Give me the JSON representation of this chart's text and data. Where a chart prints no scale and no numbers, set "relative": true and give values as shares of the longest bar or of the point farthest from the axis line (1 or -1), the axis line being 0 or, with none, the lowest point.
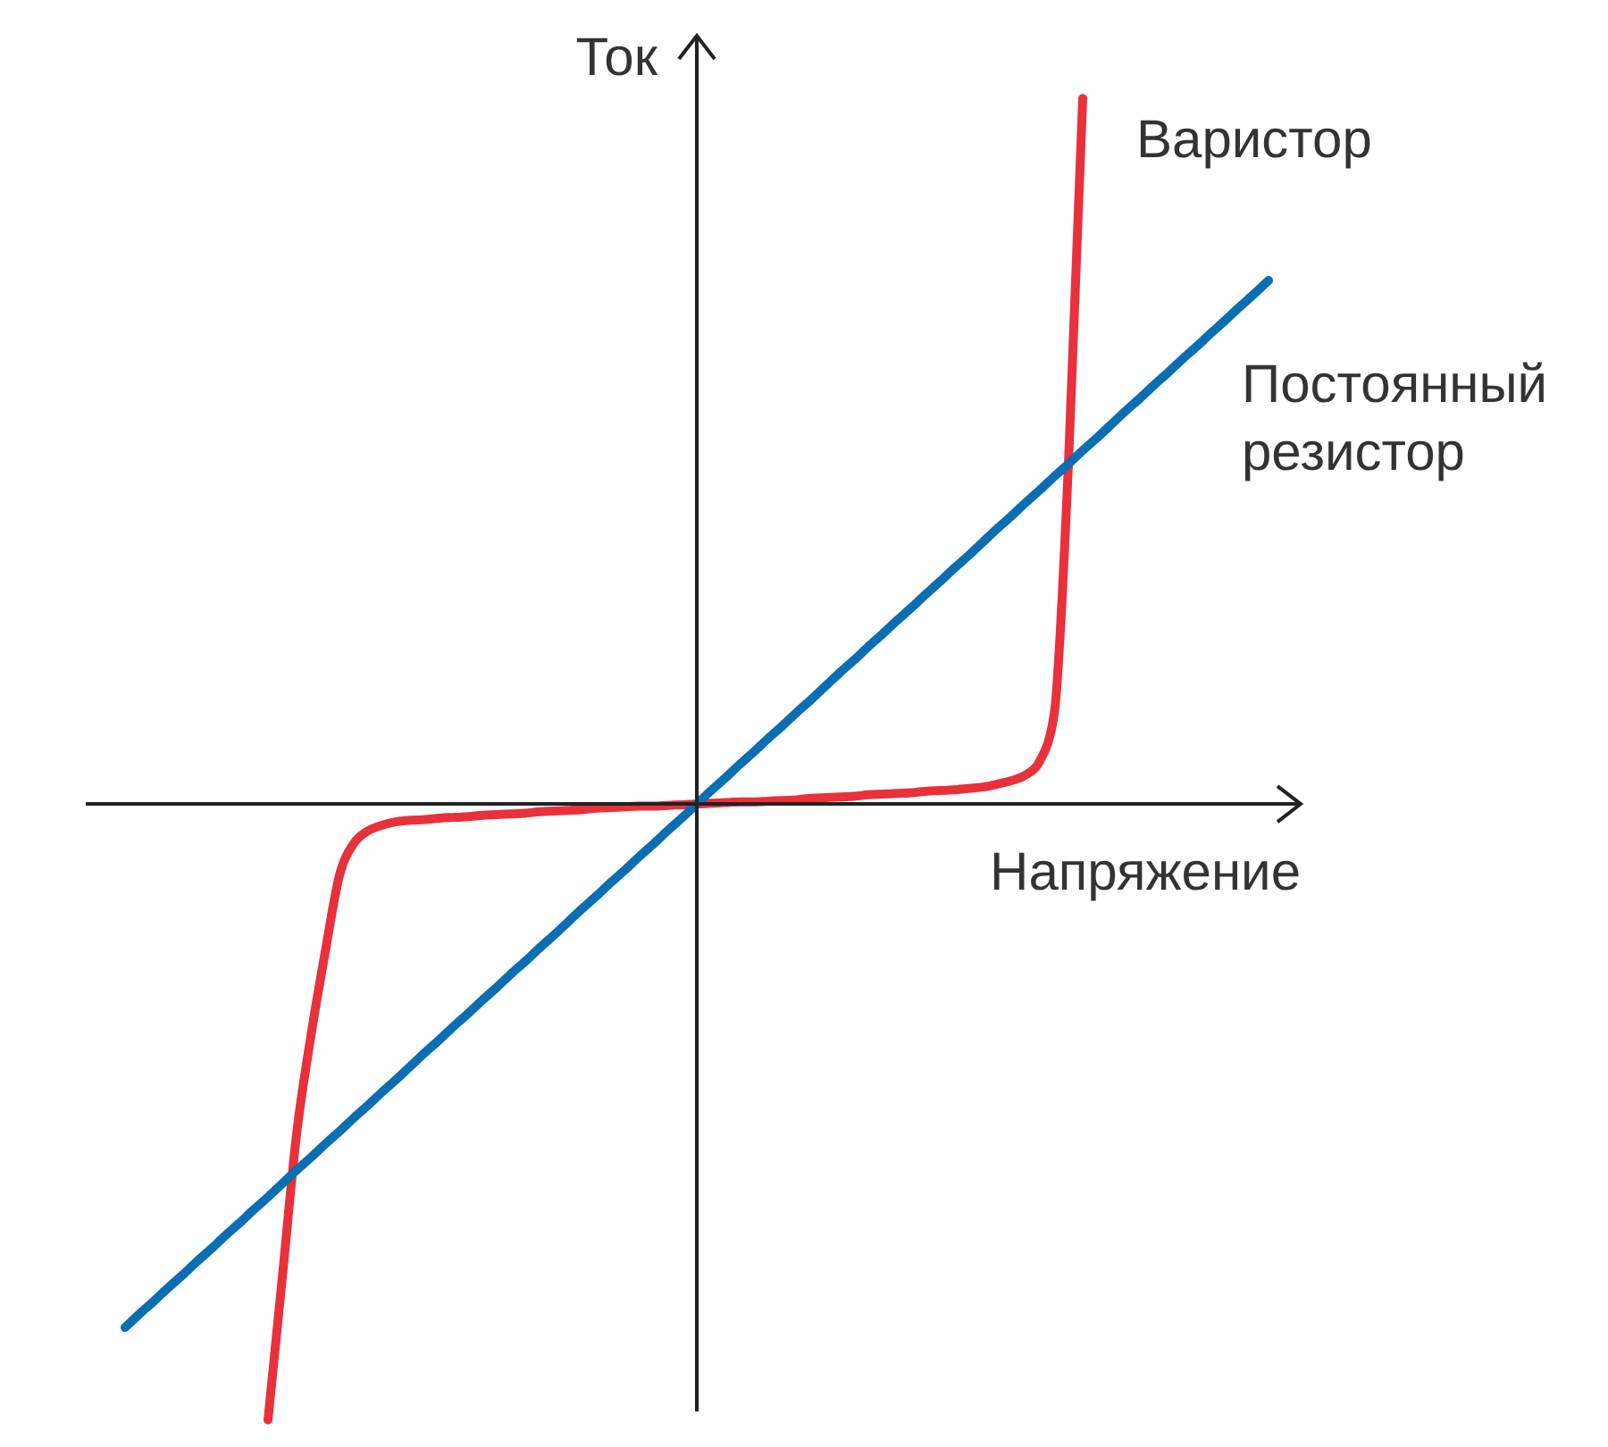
{
  "chart_data": {
    "type": "line",
    "relative": true,
    "xlabel": "Напряжение",
    "ylabel": "Ток",
    "legend": false,
    "grid": false,
    "marker": "none",
    "line_style": "solid",
    "categories": [
      null,
      null,
      null,
      null,
      null,
      null,
      null,
      null,
      null,
      null,
      null,
      null,
      null,
      null,
      null,
      null,
      null,
      null,
      null,
      null,
      null,
      null,
      null,
      null,
      null,
      null,
      null,
      null,
      null,
      null,
      null,
      null,
      null,
      null,
      null,
      null,
      null,
      null,
      null,
      null,
      null,
      null,
      null,
      null,
      null,
      null,
      null,
      null,
      null,
      null,
      null,
      null,
      null,
      null,
      null,
      null,
      null,
      null,
      null,
      null,
      null,
      null,
      null,
      null,
      null,
      null,
      null,
      null,
      null,
      null,
      null,
      null,
      null,
      null,
      null,
      null,
      null,
      null,
      null,
      null,
      null
    ],
    "series": [
      {
        "name": "Варистор",
        "color": "#e8313a",
        "values": [
          null,
          null,
          null,
          null,
          null,
          null,
          null,
          null,
          null,
          null,
          -0.873,
          -0.671,
          -0.468,
          -0.329,
          -0.21,
          -0.101,
          -0.056,
          -0.038,
          -0.03,
          -0.025,
          -0.023,
          -0.022,
          -0.02,
          -0.019,
          -0.018,
          -0.016,
          -0.015,
          -0.014,
          -0.013,
          -0.011,
          -0.01,
          -0.009,
          -0.008,
          -0.006,
          -0.005,
          -0.004,
          -0.003,
          -0.003,
          -0.002,
          -0.001,
          0,
          0.001,
          0.002,
          0.003,
          0.003,
          0.004,
          0.005,
          0.006,
          0.008,
          0.009,
          0.01,
          0.011,
          0.013,
          0.014,
          0.015,
          0.016,
          0.018,
          0.019,
          0.02,
          0.022,
          0.024,
          0.028,
          0.033,
          0.041,
          0.061,
          0.127,
          0.481,
          1,
          null,
          null,
          null,
          null,
          null,
          null,
          null,
          null,
          null,
          null,
          null,
          null,
          null
        ]
      },
      {
        "name": "Постоянный резистор",
        "color": "#0a6eb4",
        "values": [
          -0.742,
          -0.723,
          -0.705,
          -0.686,
          -0.668,
          -0.649,
          -0.631,
          -0.612,
          -0.594,
          -0.575,
          -0.557,
          -0.538,
          -0.519,
          -0.501,
          -0.482,
          -0.464,
          -0.445,
          -0.427,
          -0.408,
          -0.39,
          -0.371,
          -0.352,
          -0.334,
          -0.315,
          -0.297,
          -0.278,
          -0.26,
          -0.241,
          -0.223,
          -0.204,
          -0.186,
          -0.167,
          -0.148,
          -0.13,
          -0.111,
          -0.093,
          -0.074,
          -0.056,
          -0.037,
          -0.019,
          0,
          0.019,
          0.037,
          0.056,
          0.074,
          0.093,
          0.111,
          0.13,
          0.148,
          0.167,
          0.186,
          0.204,
          0.223,
          0.241,
          0.26,
          0.278,
          0.297,
          0.315,
          0.334,
          0.352,
          0.371,
          0.39,
          0.408,
          0.427,
          0.445,
          0.464,
          0.482,
          0.501,
          0.519,
          0.538,
          0.557,
          0.575,
          0.594,
          0.612,
          0.631,
          0.649,
          0.668,
          0.686,
          0.705,
          0.723,
          0.742
        ]
      }
    ]
  }
}
